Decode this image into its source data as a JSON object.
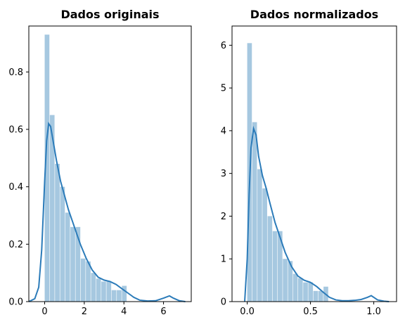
{
  "chart_data": [
    {
      "type": "histogram+kde",
      "title": "Dados originais",
      "xlabel": "",
      "ylabel": "",
      "xlim": [
        -0.8,
        7.4
      ],
      "ylim": [
        0,
        0.96
      ],
      "xticks": [
        0,
        2,
        4,
        6
      ],
      "yticks": [
        0.0,
        0.2,
        0.4,
        0.6,
        0.8
      ],
      "xtick_labels": [
        "0",
        "2",
        "4",
        "6"
      ],
      "ytick_labels": [
        "0.0",
        "0.2",
        "0.4",
        "0.6",
        "0.8"
      ],
      "bars": {
        "bin_edges": [
          0.0,
          0.26,
          0.52,
          0.78,
          1.04,
          1.3,
          1.56,
          1.82,
          2.08,
          2.34,
          2.6,
          2.86,
          3.12,
          3.38,
          3.64,
          3.9,
          4.16
        ],
        "heights": [
          0.93,
          0.65,
          0.48,
          0.4,
          0.31,
          0.26,
          0.26,
          0.15,
          0.14,
          0.1,
          0.08,
          0.07,
          0.07,
          0.04,
          0.04,
          0.055
        ],
        "color": "#a6c8e0"
      },
      "kde": {
        "x": [
          -0.8,
          -0.5,
          -0.3,
          -0.15,
          0.0,
          0.1,
          0.2,
          0.3,
          0.45,
          0.6,
          0.8,
          1.0,
          1.2,
          1.5,
          1.8,
          2.1,
          2.4,
          2.7,
          3.0,
          3.3,
          3.6,
          3.9,
          4.2,
          4.5,
          4.8,
          5.2,
          5.6,
          6.0,
          6.3,
          6.5,
          6.8,
          7.1
        ],
        "y": [
          0.0,
          0.01,
          0.05,
          0.18,
          0.42,
          0.56,
          0.62,
          0.61,
          0.55,
          0.49,
          0.42,
          0.37,
          0.32,
          0.26,
          0.2,
          0.15,
          0.11,
          0.085,
          0.075,
          0.07,
          0.06,
          0.045,
          0.03,
          0.015,
          0.005,
          0.002,
          0.003,
          0.012,
          0.02,
          0.012,
          0.003,
          0.0
        ],
        "color": "#2b7bb9"
      }
    },
    {
      "type": "histogram+kde",
      "title": "Dados normalizados",
      "xlabel": "",
      "ylabel": "",
      "xlim": [
        -0.12,
        1.18
      ],
      "ylim": [
        0,
        6.45
      ],
      "xticks": [
        0.0,
        0.5,
        1.0
      ],
      "yticks": [
        0,
        1,
        2,
        3,
        4,
        5,
        6
      ],
      "xtick_labels": [
        "0.0",
        "0.5",
        "1.0"
      ],
      "ytick_labels": [
        "0",
        "1",
        "2",
        "3",
        "4",
        "5",
        "6"
      ],
      "bars": {
        "bin_edges": [
          0.0,
          0.0402,
          0.0804,
          0.1206,
          0.1608,
          0.201,
          0.2412,
          0.2814,
          0.3216,
          0.3618,
          0.402,
          0.4422,
          0.4824,
          0.5226,
          0.5628,
          0.603,
          0.6432
        ],
        "heights": [
          6.05,
          4.2,
          3.1,
          2.65,
          2.0,
          1.65,
          1.65,
          1.0,
          0.95,
          0.65,
          0.55,
          0.45,
          0.45,
          0.25,
          0.25,
          0.35
        ],
        "color": "#a6c8e0"
      },
      "kde": {
        "x": [
          -0.02,
          0.0,
          0.015,
          0.03,
          0.05,
          0.07,
          0.09,
          0.12,
          0.15,
          0.18,
          0.22,
          0.26,
          0.3,
          0.35,
          0.4,
          0.45,
          0.5,
          0.55,
          0.6,
          0.65,
          0.7,
          0.75,
          0.8,
          0.85,
          0.9,
          0.95,
          0.98,
          1.0,
          1.03,
          1.08,
          1.12
        ],
        "y": [
          0.0,
          1.0,
          2.5,
          3.6,
          4.05,
          3.9,
          3.4,
          2.95,
          2.65,
          2.3,
          1.85,
          1.5,
          1.15,
          0.82,
          0.6,
          0.5,
          0.45,
          0.35,
          0.22,
          0.1,
          0.04,
          0.02,
          0.02,
          0.03,
          0.05,
          0.1,
          0.14,
          0.1,
          0.04,
          0.01,
          0.0
        ],
        "color": "#2b7bb9"
      }
    }
  ]
}
